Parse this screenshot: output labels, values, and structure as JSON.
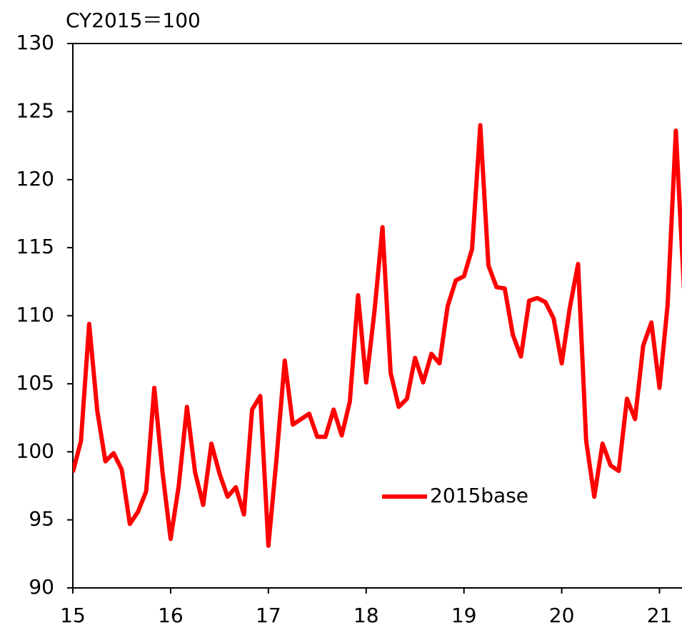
{
  "chart_data": {
    "type": "line",
    "y_label": "CY2015＝100",
    "x": [
      15,
      15.083,
      15.167,
      15.25,
      15.333,
      15.417,
      15.5,
      15.583,
      15.667,
      15.75,
      15.833,
      15.917,
      16,
      16.083,
      16.167,
      16.25,
      16.333,
      16.417,
      16.5,
      16.583,
      16.667,
      16.75,
      16.833,
      16.917,
      17,
      17.083,
      17.167,
      17.25,
      17.333,
      17.417,
      17.5,
      17.583,
      17.667,
      17.75,
      17.833,
      17.917,
      18,
      18.083,
      18.167,
      18.25,
      18.333,
      18.417,
      18.5,
      18.583,
      18.667,
      18.75,
      18.833,
      18.917,
      19,
      19.083,
      19.167,
      19.25,
      19.333,
      19.417,
      19.5,
      19.583,
      19.667,
      19.75,
      19.833,
      19.917,
      20,
      20.083,
      20.167,
      20.25,
      20.333,
      20.417,
      20.5,
      20.583,
      20.667,
      20.75,
      20.833,
      20.917,
      21,
      21.083,
      21.167,
      21.25
    ],
    "series": [
      {
        "name": "2015base",
        "color": "#ff0000",
        "values": [
          98.5,
          100.8,
          109.4,
          103,
          99.3,
          99.9,
          98.7,
          94.7,
          95.6,
          97.1,
          104.7,
          98.5,
          93.6,
          97.5,
          103.3,
          98.5,
          96.1,
          100.6,
          98.4,
          96.7,
          97.4,
          95.4,
          103.1,
          104.1,
          93.1,
          99.5,
          106.7,
          102,
          102.4,
          102.8,
          101.1,
          101.1,
          103.1,
          101.2,
          103.7,
          111.5,
          105.1,
          110.2,
          116.5,
          105.8,
          103.3,
          103.9,
          106.9,
          105.1,
          107.2,
          106.5,
          110.7,
          112.6,
          112.9,
          114.9,
          124,
          113.7,
          112.1,
          112,
          108.6,
          107,
          111.1,
          111.3,
          111,
          109.8,
          106.5,
          110.6,
          113.8,
          100.8,
          96.7,
          100.6,
          99,
          98.6,
          103.9,
          102.4,
          107.8,
          109.5,
          104.7,
          110.8,
          123.6,
          112
        ]
      }
    ],
    "xlim": [
      15,
      21.23
    ],
    "xticks": [
      15,
      16,
      17,
      18,
      19,
      20,
      21
    ],
    "ylim": [
      90,
      130
    ],
    "yticks": [
      90,
      95,
      100,
      105,
      110,
      115,
      120,
      125,
      130
    ]
  }
}
